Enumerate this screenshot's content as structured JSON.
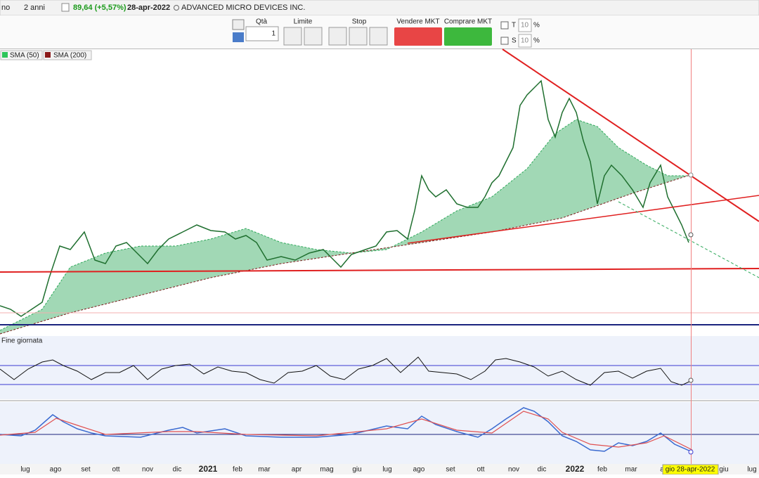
{
  "toolbar": {
    "period_left": "no",
    "period": "2 anni",
    "quote": "89,64 (+5,57%)",
    "date": "28-apr-2022",
    "company": "ADVANCED MICRO DEVICES INC.",
    "qty_label": "Qtà",
    "qty_value": "1",
    "limit_label": "Limite",
    "stop_label": "Stop",
    "sell_label": "Vendere MKT",
    "buy_label": "Comprare MKT",
    "t_label": "T",
    "t_value": "10",
    "s_label": "S",
    "s_value": "10",
    "percent": "%"
  },
  "legend": [
    "SMA (50)",
    "SMA (200)"
  ],
  "subpanel_label": "Fine giornata",
  "x_axis": {
    "labels": [
      "lug",
      "ago",
      "set",
      "ott",
      "nov",
      "dic",
      "2021",
      "feb",
      "mar",
      "apr",
      "mag",
      "giu",
      "lug",
      "ago",
      "set",
      "ott",
      "nov",
      "dic",
      "2022",
      "feb",
      "mar",
      "a",
      "giu",
      "lug"
    ],
    "cursor_label": "gio 28-apr-2022"
  }
}
